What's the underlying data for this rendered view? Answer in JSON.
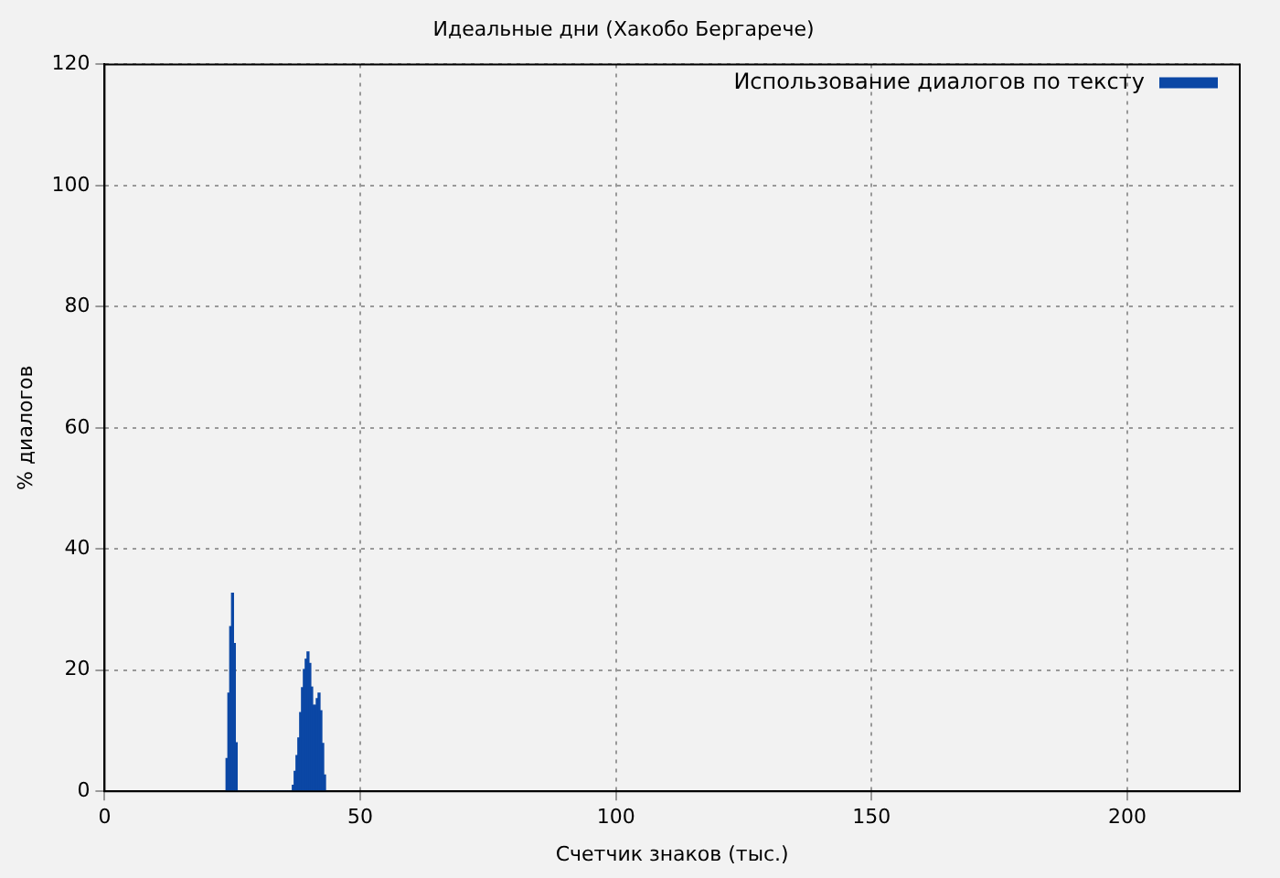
{
  "chart_data": {
    "type": "histogram",
    "title": "Идеальные дни (Хакобо Бергарече)",
    "xlabel": "Счетчик знаков (тыс.)",
    "ylabel": "% диалогов",
    "bins": [
      23.76,
      24.12,
      24.48,
      24.84,
      25.2,
      25.56,
      25.92,
      26.28,
      26.64,
      27,
      27.36,
      27.72,
      28.08,
      28.44,
      28.8,
      29.16,
      29.52,
      29.88,
      30.24,
      30.6,
      30.96,
      31.32,
      31.68,
      32.04,
      32.4,
      32.76,
      33.12,
      33.48,
      33.84,
      34.2,
      34.56,
      34.92,
      35.28,
      35.64,
      36,
      36.36,
      36.72,
      37.08,
      37.44,
      37.8,
      38.16,
      38.52,
      38.88,
      39.24,
      39.6,
      39.96,
      40.32,
      40.68,
      41.04,
      41.4,
      41.76,
      42.12,
      42.48,
      42.84,
      43.2
    ],
    "series": [
      {
        "name": "Использование диалогов по тексту",
        "color": "#0b47a5",
        "values": [
          5.4,
          16.2,
          27.2,
          32.7,
          24.4,
          8,
          0,
          0,
          0,
          0,
          0,
          0,
          0,
          0,
          0,
          0,
          0,
          0,
          0,
          0,
          0,
          0,
          0,
          0,
          0,
          0,
          0,
          0,
          0,
          0,
          0,
          0,
          0,
          0,
          0,
          0,
          1,
          3.3,
          5.9,
          8.8,
          13,
          17.1,
          20.1,
          21.8,
          23,
          21.1,
          17.2,
          14.2,
          14.2,
          15.3,
          16.2,
          13.3,
          7.9,
          2.7
        ]
      }
    ],
    "xlim": [
      0,
      222
    ],
    "xticks": [
      0,
      50,
      100,
      150,
      200
    ],
    "ylim": [
      0,
      120
    ],
    "yticks": [
      0,
      20,
      40,
      60,
      80,
      100,
      120
    ],
    "grid": true,
    "legend": "top right"
  }
}
